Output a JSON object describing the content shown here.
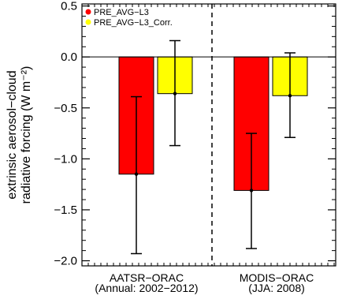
{
  "chart_data": {
    "type": "bar",
    "categories": [
      [
        "AATSR−ORAC",
        "(Annual: 2002−2012)"
      ],
      [
        "MODIS−ORAC",
        "(JJA: 2008)"
      ]
    ],
    "ylabel": [
      "extrinsic aerosol−cloud",
      "radiative forcing (W m⁻²)"
    ],
    "ylim": [
      -2.05,
      0.52
    ],
    "yticks": [
      0.5,
      0.0,
      -0.5,
      -1.0,
      -1.5,
      -2.0
    ],
    "ytick_labels": [
      "0.5",
      "0.0",
      "−0.5",
      "−1.0",
      "−1.5",
      "−2.0"
    ],
    "legend_position": "top-left",
    "series": [
      {
        "name": "PRE_AVG−L3",
        "color": "#ff0000",
        "values": [
          -1.15,
          -1.31
        ],
        "error_low": [
          -1.93,
          -1.88
        ],
        "error_high": [
          -0.39,
          -0.75
        ]
      },
      {
        "name": "PRE_AVG−L3_Corr.",
        "color": "#ffff00",
        "values": [
          -0.36,
          -0.38
        ],
        "error_low": [
          -0.87,
          -0.79
        ],
        "error_high": [
          0.16,
          0.04
        ]
      }
    ],
    "zero_line": true,
    "category_separator": "dashed"
  }
}
